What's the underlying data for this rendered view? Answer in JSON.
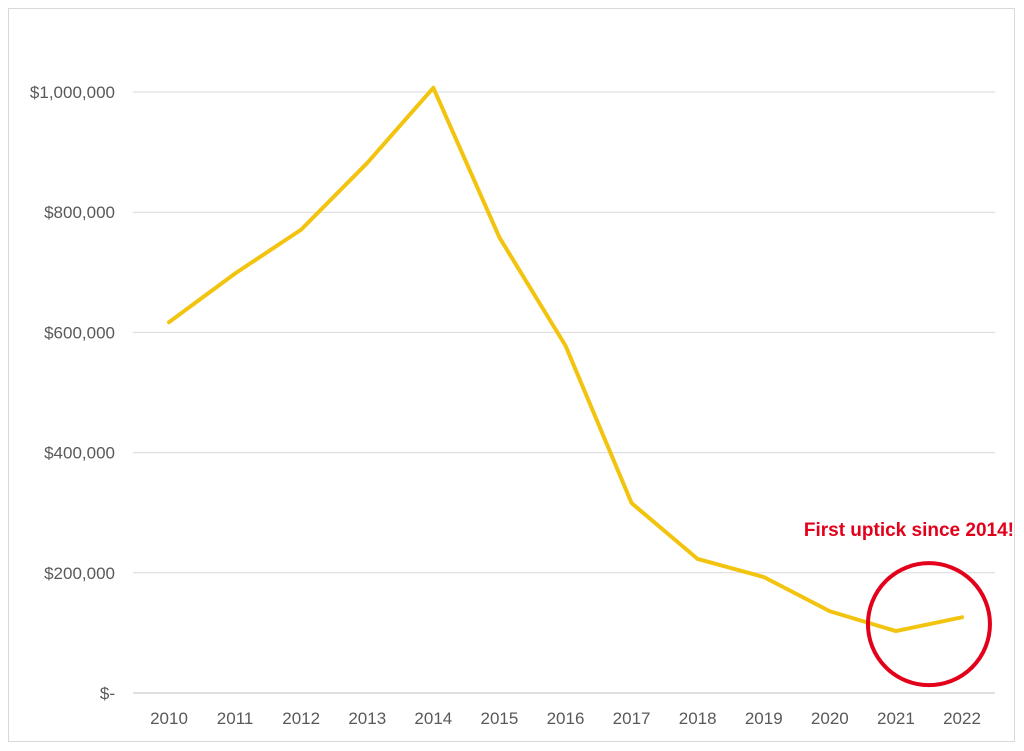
{
  "chart_data": {
    "type": "line",
    "title": "",
    "xlabel": "",
    "ylabel": "",
    "x": [
      "2010",
      "2011",
      "2012",
      "2013",
      "2014",
      "2015",
      "2016",
      "2017",
      "2018",
      "2019",
      "2020",
      "2021",
      "2022"
    ],
    "series": [
      {
        "values": [
          617000,
          698000,
          771000,
          882000,
          1007000,
          758000,
          578000,
          316000,
          223000,
          193000,
          136000,
          103000,
          126000
        ],
        "color": "#f2c40f"
      }
    ],
    "ylim": [
      0,
      1000000
    ],
    "y_ticks": [
      0,
      200000,
      400000,
      600000,
      800000,
      1000000
    ],
    "y_tick_labels": [
      "$-",
      "$200,000",
      "$400,000",
      "$600,000",
      "$800,000",
      "$1,000,000"
    ],
    "grid": true,
    "legend": "none",
    "annotation": {
      "text": "First uptick since 2014!",
      "color": "#e3001b",
      "circle_around_x": [
        "2021",
        "2022"
      ]
    }
  }
}
